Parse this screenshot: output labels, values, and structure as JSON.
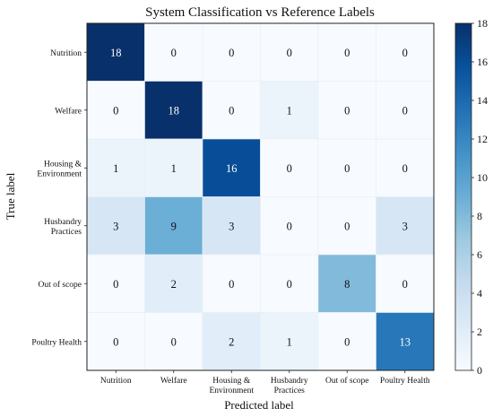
{
  "chart_data": {
    "type": "heatmap",
    "title": "System Classification vs Reference Labels",
    "xlabel": "Predicted label",
    "ylabel": "True label",
    "x_categories": [
      [
        "Nutrition"
      ],
      [
        "Welfare"
      ],
      [
        "Housing &",
        "Environment"
      ],
      [
        "Husbandry",
        "Practices"
      ],
      [
        "Out of  scope"
      ],
      [
        "Poultry  Health"
      ]
    ],
    "y_categories": [
      [
        "Nutrition"
      ],
      [
        "Welfare"
      ],
      [
        "Housing &",
        "Environment"
      ],
      [
        "Husbandry",
        "Practices"
      ],
      [
        "Out of  scope"
      ],
      [
        "Poultry  Health"
      ]
    ],
    "values": [
      [
        18,
        0,
        0,
        0,
        0,
        0
      ],
      [
        0,
        18,
        0,
        1,
        0,
        0
      ],
      [
        1,
        1,
        16,
        0,
        0,
        0
      ],
      [
        3,
        9,
        3,
        0,
        0,
        3
      ],
      [
        0,
        2,
        0,
        0,
        8,
        0
      ],
      [
        0,
        0,
        2,
        1,
        0,
        13
      ]
    ],
    "value_range": [
      0,
      18
    ],
    "colormap": "Blues",
    "colorbar_ticks": [
      0,
      2,
      4,
      6,
      8,
      10,
      12,
      14,
      16,
      18
    ]
  }
}
